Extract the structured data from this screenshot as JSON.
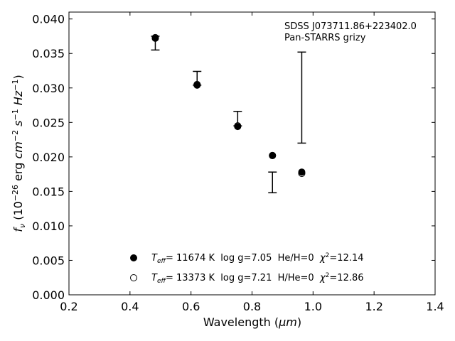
{
  "chart_data": {
    "type": "scatter",
    "xlabel_main": "Wavelength (",
    "xlabel_unit": "μm",
    "xlabel_close": ")",
    "ylabel_f": "f",
    "ylabel_nu": "ν",
    "ylabel_rest": " (10",
    "ylabel_exp1": "−26",
    "ylabel_erg": " erg ",
    "ylabel_cm": "cm",
    "ylabel_exp2": "−2",
    "ylabel_s": " s",
    "ylabel_exp3": "−1",
    "ylabel_hz": " Hz",
    "ylabel_exp4": "−1",
    "ylabel_close": ")",
    "annotation_line1": "SDSS J073711.86+223402.0",
    "annotation_line2": "Pan-STARRS grizy",
    "xlim": [
      0.2,
      1.4
    ],
    "ylim": [
      0.0,
      0.041
    ],
    "xticks": [
      "0.2",
      "0.4",
      "0.6",
      "0.8",
      "1.0",
      "1.2",
      "1.4"
    ],
    "xtick_values": [
      0.2,
      0.4,
      0.6,
      0.8,
      1.0,
      1.2,
      1.4
    ],
    "yticks": [
      "0.000",
      "0.005",
      "0.010",
      "0.015",
      "0.020",
      "0.025",
      "0.030",
      "0.035",
      "0.040"
    ],
    "ytick_values": [
      0.0,
      0.005,
      0.01,
      0.015,
      0.02,
      0.025,
      0.03,
      0.035,
      0.04
    ],
    "observed": {
      "x": [
        0.483,
        0.62,
        0.753,
        0.867,
        0.963
      ],
      "y_low": [
        0.0355,
        0.0304,
        0.0245,
        0.0148,
        0.022
      ],
      "y_high": [
        0.0375,
        0.0324,
        0.0266,
        0.0178,
        0.0352
      ]
    },
    "series": [
      {
        "marker": "filled-circle",
        "legend_teff": "T",
        "legend_eff": "eff",
        "legend_text": "= 11674 K  log g=7.05  He/H=0  ",
        "legend_chi": "χ",
        "legend_chi_exp": "2",
        "legend_chi_val": "=12.14",
        "x": [
          0.483,
          0.62,
          0.753,
          0.867,
          0.963
        ],
        "y": [
          0.0372,
          0.0304,
          0.0244,
          0.0202,
          0.0178
        ]
      },
      {
        "marker": "open-circle",
        "legend_teff": "T",
        "legend_eff": "eff",
        "legend_text": "= 13373 K  log g=7.21  H/He=0  ",
        "legend_chi": "χ",
        "legend_chi_exp": "2",
        "legend_chi_val": "=12.86",
        "x": [
          0.483,
          0.62,
          0.753,
          0.867,
          0.963
        ],
        "y": [
          0.0373,
          0.0305,
          0.0245,
          0.0202,
          0.0176
        ]
      }
    ],
    "grid": false,
    "legend_position": "lower-left"
  }
}
